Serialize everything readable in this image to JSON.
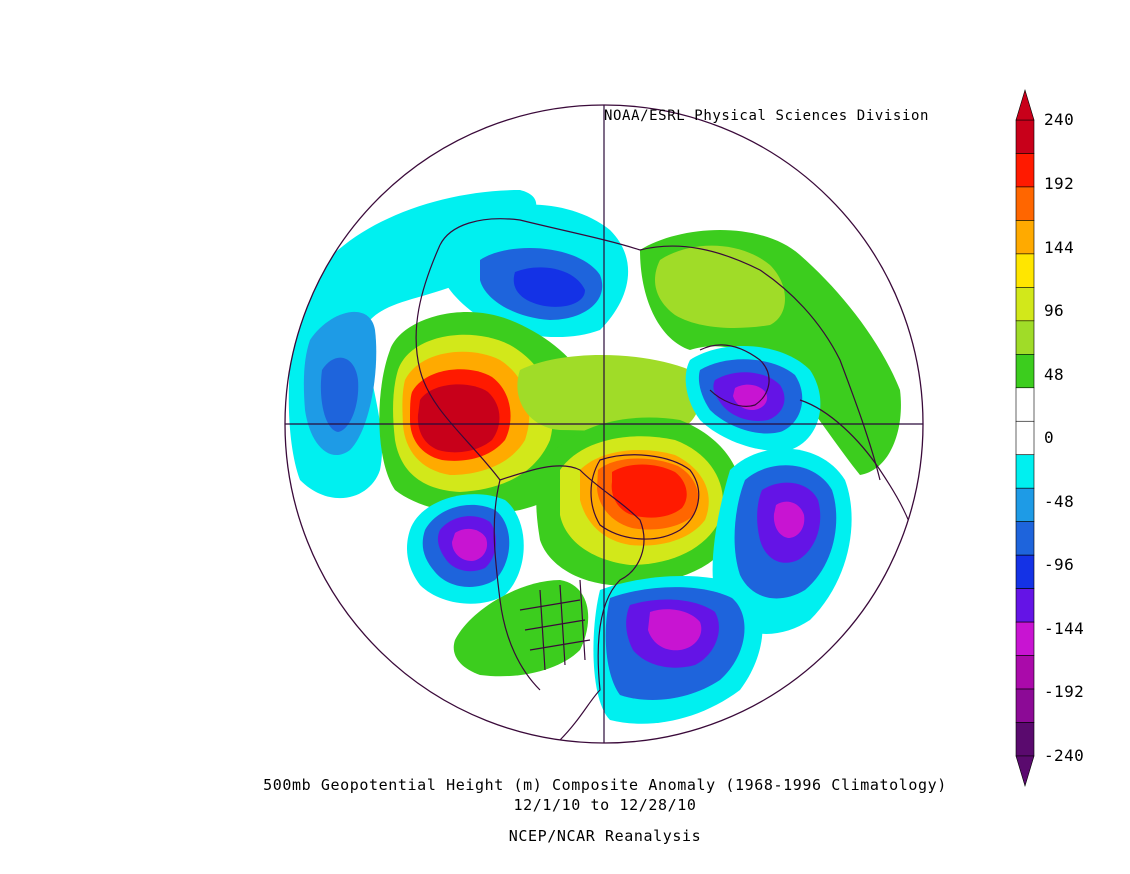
{
  "map": {
    "credit": "NOAA/ESRL Physical Sciences Division",
    "title_line1": "500mb Geopotential Height (m) Composite Anomaly (1968-1996 Climatology)",
    "title_line2": "12/1/10   to 12/28/10",
    "title_line3": "NCEP/NCAR Reanalysis",
    "projection": "north-polar-stereographic",
    "variable": "500mb geopotential height anomaly",
    "units": "m"
  },
  "colorbar": {
    "ticks": [
      "240",
      "192",
      "144",
      "96",
      "48",
      "0",
      "-48",
      "-96",
      "-144",
      "-192",
      "-240"
    ],
    "levels_from_top": [
      {
        "range": ">216",
        "color": "#c8001a"
      },
      {
        "range": "192-216",
        "color": "#ff1a00"
      },
      {
        "range": "168-192",
        "color": "#ff6600"
      },
      {
        "range": "144-168",
        "color": "#ffaa00"
      },
      {
        "range": "120-144",
        "color": "#ffe600"
      },
      {
        "range": "96-120",
        "color": "#d2e81a"
      },
      {
        "range": "72-96",
        "color": "#a0dc28"
      },
      {
        "range": "24-48",
        "color": "#3ccd1e"
      },
      {
        "range": "0-24",
        "color": "#ffffff"
      },
      {
        "range": "-24-0",
        "color": "#ffffff"
      },
      {
        "range": "-48--24",
        "color": "#00f0f0"
      },
      {
        "range": "-72--48",
        "color": "#1e9be6"
      },
      {
        "range": "-96--72",
        "color": "#1e64dc"
      },
      {
        "range": "-120--96",
        "color": "#1432e6"
      },
      {
        "range": "-144--120",
        "color": "#6414e6"
      },
      {
        "range": "-168--144",
        "color": "#c814d2"
      },
      {
        "range": "-192--168",
        "color": "#aa0aaa"
      },
      {
        "range": "-216--192",
        "color": "#8c0a96"
      },
      {
        "range": "<-216",
        "color": "#5a0a6e"
      }
    ]
  },
  "anomaly_centers": [
    {
      "region": "Alaska / NE Pacific",
      "sign": "positive",
      "peak": ">216"
    },
    {
      "region": "Greenland",
      "sign": "positive",
      "peak": "192-216"
    },
    {
      "region": "Scandinavia / Europe",
      "sign": "negative",
      "peak": "-168--144"
    },
    {
      "region": "Eastern North Atlantic",
      "sign": "negative",
      "peak": "-168--144"
    },
    {
      "region": "Eastern United States",
      "sign": "negative",
      "peak": "-168--144"
    },
    {
      "region": "North Pacific near Japan",
      "sign": "negative",
      "peak": "-168--144"
    },
    {
      "region": "Western Pacific",
      "sign": "negative",
      "peak": "-96--72"
    },
    {
      "region": "Central Siberia",
      "sign": "negative",
      "peak": "-120--96"
    },
    {
      "region": "Arctic / Eurasia",
      "sign": "positive",
      "peak": "48-96"
    },
    {
      "region": "Western United States",
      "sign": "positive",
      "peak": "48-96"
    }
  ]
}
